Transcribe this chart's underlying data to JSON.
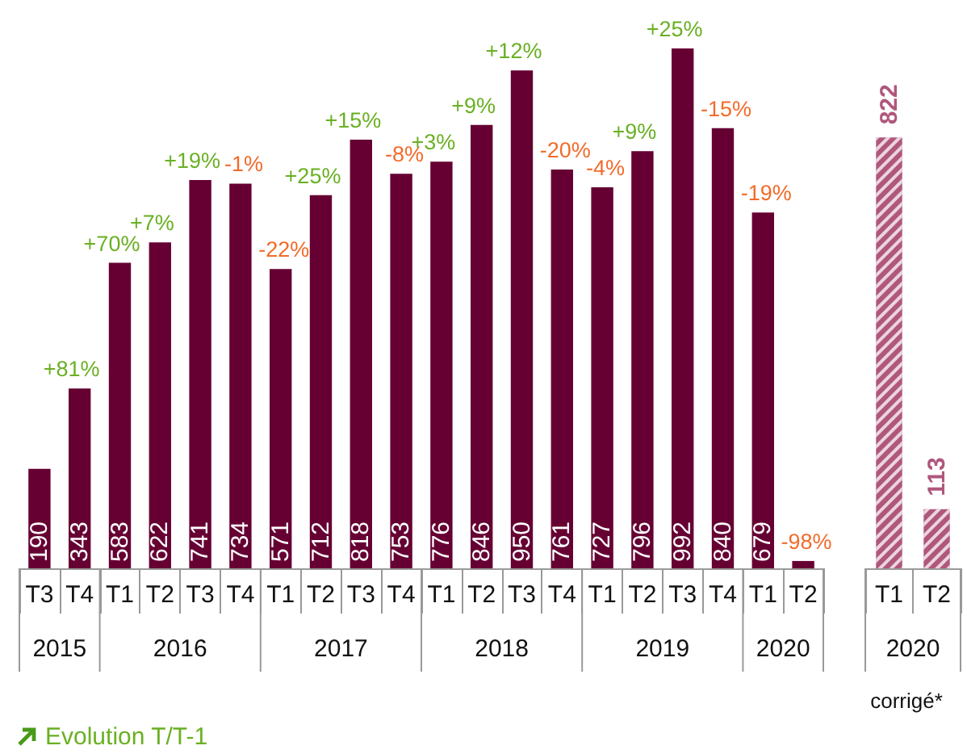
{
  "chart_data": [
    {
      "type": "bar",
      "categories": [
        "T3",
        "T4",
        "T1",
        "T2",
        "T3",
        "T4",
        "T1",
        "T2",
        "T3",
        "T4",
        "T1",
        "T2",
        "T3",
        "T4",
        "T1",
        "T2",
        "T3",
        "T4",
        "T1",
        "T2"
      ],
      "values": [
        190,
        343,
        583,
        622,
        741,
        734,
        571,
        712,
        818,
        753,
        776,
        846,
        950,
        761,
        727,
        796,
        992,
        840,
        679,
        14
      ],
      "value_labels": [
        "190",
        "343",
        "583",
        "622",
        "741",
        "734",
        "571",
        "712",
        "818",
        "753",
        "776",
        "846",
        "950",
        "761",
        "727",
        "796",
        "992",
        "840",
        "679",
        null
      ],
      "color": "#660033",
      "annotations": [
        "2015",
        "2016",
        "2017",
        "2018",
        "2019",
        "2020",
        "+81%",
        "+70%",
        "+7%",
        "+19%",
        "-1%",
        "-22%",
        "+25%",
        "+15%",
        "-8%",
        "+3%",
        "+9%",
        "+12%",
        "-20%",
        "-4%",
        "+9%",
        "+25%",
        "-15%",
        "-19%",
        "-98%",
        "Evolution T/T-1"
      ]
    },
    {
      "type": "bar",
      "categories": [
        "T1",
        "T2"
      ],
      "values": [
        822,
        113
      ],
      "data_labels": true,
      "color": "#b0577c",
      "xlabel": "2020",
      "annotations": [
        "corrigé*"
      ]
    }
  ]
}
